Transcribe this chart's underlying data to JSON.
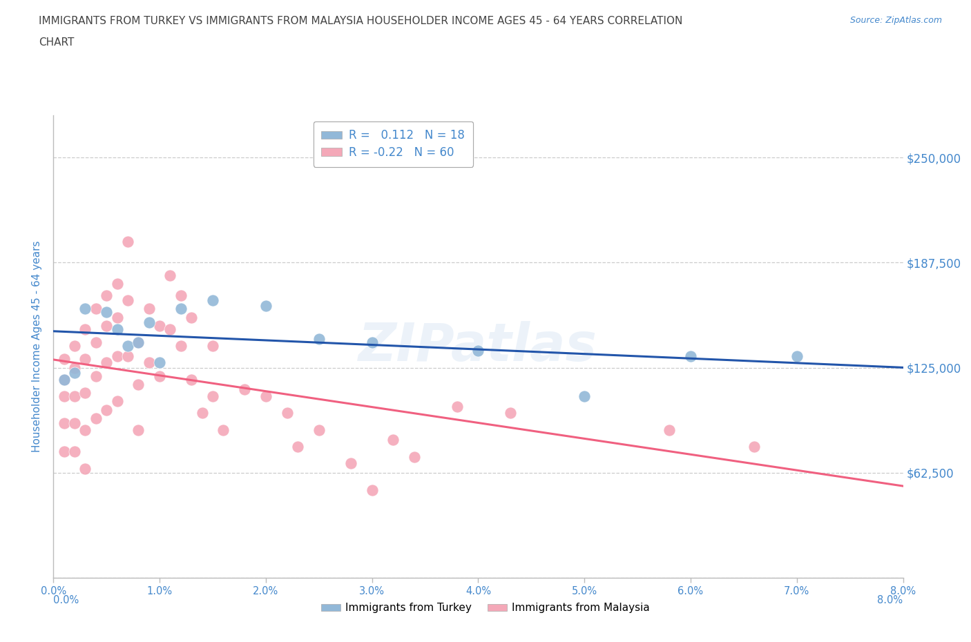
{
  "title_line1": "IMMIGRANTS FROM TURKEY VS IMMIGRANTS FROM MALAYSIA HOUSEHOLDER INCOME AGES 45 - 64 YEARS CORRELATION",
  "title_line2": "CHART",
  "ylabel": "Householder Income Ages 45 - 64 years",
  "source": "Source: ZipAtlas.com",
  "watermark": "ZIPatlas",
  "xlim": [
    0.0,
    0.08
  ],
  "ylim": [
    0,
    275000
  ],
  "yticks": [
    0,
    62500,
    125000,
    187500,
    250000
  ],
  "ytick_labels": [
    "",
    "$62,500",
    "$125,000",
    "$187,500",
    "$250,000"
  ],
  "xticks": [
    0.0,
    0.01,
    0.02,
    0.03,
    0.04,
    0.05,
    0.06,
    0.07,
    0.08
  ],
  "xtick_labels": [
    "0.0%",
    "1.0%",
    "2.0%",
    "3.0%",
    "4.0%",
    "5.0%",
    "6.0%",
    "7.0%",
    "8.0%"
  ],
  "turkey_color": "#92b8d8",
  "malaysia_color": "#f4a8b8",
  "turkey_line_color": "#2255aa",
  "malaysia_line_color": "#f06080",
  "turkey_R": 0.112,
  "turkey_N": 18,
  "malaysia_R": -0.22,
  "malaysia_N": 60,
  "legend_label_turkey": "Immigrants from Turkey",
  "legend_label_malaysia": "Immigrants from Malaysia",
  "turkey_x": [
    0.001,
    0.002,
    0.003,
    0.005,
    0.006,
    0.007,
    0.008,
    0.009,
    0.01,
    0.012,
    0.015,
    0.02,
    0.025,
    0.03,
    0.04,
    0.05,
    0.06,
    0.07
  ],
  "turkey_y": [
    118000,
    122000,
    160000,
    158000,
    148000,
    138000,
    140000,
    152000,
    128000,
    160000,
    165000,
    162000,
    142000,
    140000,
    135000,
    108000,
    132000,
    132000
  ],
  "malaysia_x": [
    0.001,
    0.001,
    0.001,
    0.001,
    0.001,
    0.002,
    0.002,
    0.002,
    0.002,
    0.002,
    0.003,
    0.003,
    0.003,
    0.003,
    0.003,
    0.004,
    0.004,
    0.004,
    0.004,
    0.005,
    0.005,
    0.005,
    0.005,
    0.006,
    0.006,
    0.006,
    0.006,
    0.007,
    0.007,
    0.007,
    0.008,
    0.008,
    0.008,
    0.009,
    0.009,
    0.01,
    0.01,
    0.011,
    0.011,
    0.012,
    0.012,
    0.013,
    0.013,
    0.014,
    0.015,
    0.015,
    0.016,
    0.018,
    0.02,
    0.022,
    0.023,
    0.025,
    0.028,
    0.03,
    0.032,
    0.034,
    0.038,
    0.043,
    0.058,
    0.066
  ],
  "malaysia_y": [
    130000,
    118000,
    108000,
    92000,
    75000,
    138000,
    125000,
    108000,
    92000,
    75000,
    148000,
    130000,
    110000,
    88000,
    65000,
    160000,
    140000,
    120000,
    95000,
    168000,
    150000,
    128000,
    100000,
    175000,
    155000,
    132000,
    105000,
    200000,
    165000,
    132000,
    140000,
    115000,
    88000,
    160000,
    128000,
    150000,
    120000,
    180000,
    148000,
    168000,
    138000,
    155000,
    118000,
    98000,
    138000,
    108000,
    88000,
    112000,
    108000,
    98000,
    78000,
    88000,
    68000,
    52000,
    82000,
    72000,
    102000,
    98000,
    88000,
    78000
  ],
  "background_color": "#ffffff",
  "grid_color": "#cccccc",
  "title_color": "#444444",
  "axis_color": "#4488cc",
  "tick_color": "#4488cc",
  "spine_color": "#bbbbbb"
}
